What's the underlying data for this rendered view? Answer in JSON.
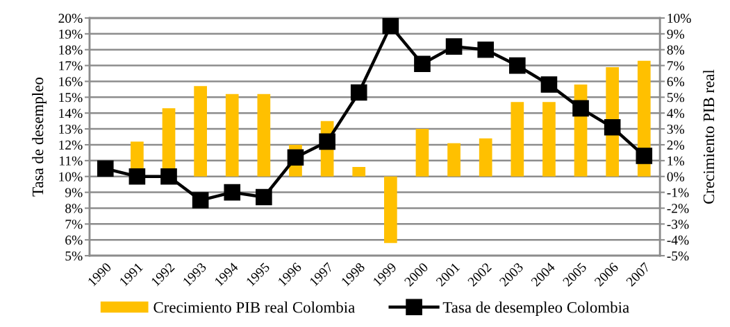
{
  "chart_data": {
    "type": "bar",
    "categories": [
      "1990",
      "1991",
      "1992",
      "1993",
      "1994",
      "1995",
      "1996",
      "1997",
      "1998",
      "1999",
      "2000",
      "2001",
      "2002",
      "2003",
      "2004",
      "2005",
      "2006",
      "2007"
    ],
    "series": [
      {
        "name": "Crecimiento PIB real Colombia",
        "axis": "y2",
        "color": "#ffc000",
        "values": [
          null,
          2.2,
          4.3,
          5.7,
          5.2,
          5.2,
          2.0,
          3.5,
          0.6,
          -4.2,
          3.0,
          2.1,
          2.4,
          4.7,
          4.7,
          5.8,
          6.9,
          7.3
        ]
      },
      {
        "name": "Tasa de desempleo Colombia",
        "type": "line",
        "axis": "y",
        "color": "#000000",
        "marker": "square",
        "line_style": "solid",
        "values": [
          10.5,
          10.0,
          10.0,
          8.5,
          9.0,
          8.7,
          11.2,
          12.2,
          15.3,
          19.5,
          17.1,
          18.2,
          18.0,
          17.0,
          15.8,
          14.3,
          13.1,
          11.3
        ]
      }
    ],
    "ylabel": "Tasa de desempleo",
    "y2label": "Crecimiento PIB real",
    "ylim": [
      5,
      20
    ],
    "yticks": [
      {
        "value": 5,
        "label": "5%"
      },
      {
        "value": 6,
        "label": "6%"
      },
      {
        "value": 7,
        "label": "7%"
      },
      {
        "value": 8,
        "label": "8%"
      },
      {
        "value": 9,
        "label": "9%"
      },
      {
        "value": 10,
        "label": "10%"
      },
      {
        "value": 11,
        "label": "11%"
      },
      {
        "value": 12,
        "label": "12%"
      },
      {
        "value": 13,
        "label": "13%"
      },
      {
        "value": 14,
        "label": "14%"
      },
      {
        "value": 15,
        "label": "15%"
      },
      {
        "value": 16,
        "label": "16%"
      },
      {
        "value": 17,
        "label": "17%"
      },
      {
        "value": 18,
        "label": "18%"
      },
      {
        "value": 19,
        "label": "19%"
      },
      {
        "value": 20,
        "label": "20%"
      }
    ],
    "y2lim": [
      -5,
      10
    ],
    "y2ticks": [
      {
        "value": -5,
        "label": "-5%"
      },
      {
        "value": -4,
        "label": "-4%"
      },
      {
        "value": -3,
        "label": "-3%"
      },
      {
        "value": -2,
        "label": "-2%"
      },
      {
        "value": -1,
        "label": "-1%"
      },
      {
        "value": 0,
        "label": "0%"
      },
      {
        "value": 1,
        "label": "1%"
      },
      {
        "value": 2,
        "label": "2%"
      },
      {
        "value": 3,
        "label": "3%"
      },
      {
        "value": 4,
        "label": "4%"
      },
      {
        "value": 5,
        "label": "5%"
      },
      {
        "value": 6,
        "label": "6%"
      },
      {
        "value": 7,
        "label": "7%"
      },
      {
        "value": 8,
        "label": "8%"
      },
      {
        "value": 9,
        "label": "9%"
      },
      {
        "value": 10,
        "label": "10%"
      }
    ],
    "grid": "y",
    "legend": "bottom"
  }
}
